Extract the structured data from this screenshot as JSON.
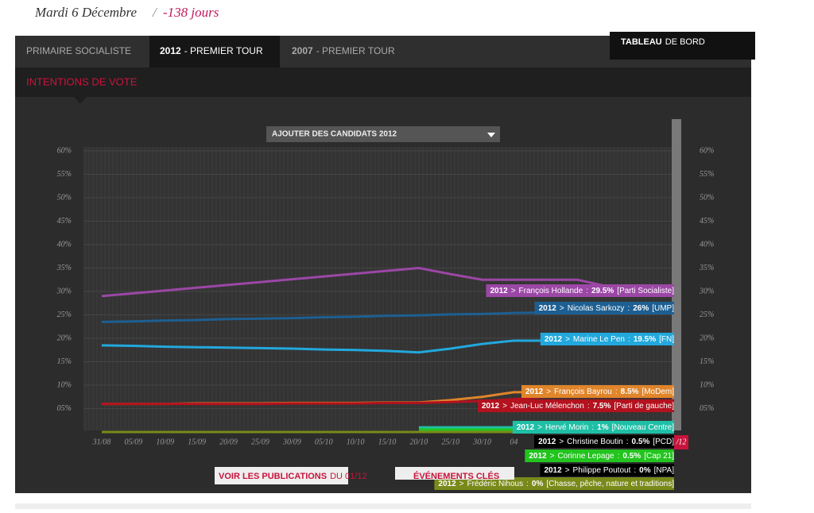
{
  "header": {
    "date": "Mardi 6 Décembre",
    "separator": "/",
    "countdown": "-138 jours"
  },
  "tabs": [
    {
      "bold": "",
      "text": "PRIMAIRE SOCIALISTE"
    },
    {
      "bold": "2012",
      "text": "- PREMIER TOUR"
    },
    {
      "bold": "2007",
      "text": "- PREMIER TOUR"
    }
  ],
  "dashboard": {
    "bold": "TABLEAU",
    "text": "DE BORD"
  },
  "subtab": "INTENTIONS DE VOTE",
  "dropdown": "AJOUTER DES CANDIDATS 2012",
  "publications": {
    "bold": "VOIR LES PUBLICATIONS",
    "text": "DU 01/12"
  },
  "events": "ÉVÉNEMENTS CLÉS",
  "chart_data": {
    "type": "line",
    "label_prefix": "2012",
    "arrow": ">",
    "separator": ":",
    "categories": [
      "31/08",
      "05/09",
      "10/09",
      "15/09",
      "20/09",
      "25/09",
      "30/09",
      "05/10",
      "10/10",
      "15/10",
      "20/10",
      "25/10",
      "30/10",
      "04",
      null,
      null,
      null,
      null,
      "/12"
    ],
    "ylim": [
      0,
      60
    ],
    "yticks": [
      {
        "value": 5,
        "label": "05%"
      },
      {
        "value": 10,
        "label": "10%"
      },
      {
        "value": 15,
        "label": "15%"
      },
      {
        "value": 20,
        "label": "20%"
      },
      {
        "value": 25,
        "label": "25%"
      },
      {
        "value": 30,
        "label": "30%"
      },
      {
        "value": 35,
        "label": "35%"
      },
      {
        "value": 40,
        "label": "40%"
      },
      {
        "value": 45,
        "label": "45%"
      },
      {
        "value": 50,
        "label": "50%"
      },
      {
        "value": 55,
        "label": "55%"
      },
      {
        "value": 60,
        "label": "60%"
      }
    ],
    "series": [
      {
        "name": "François Hollande",
        "current": "29.5%",
        "party": "[Parti Socialiste]",
        "color": "#9b47a6",
        "values": [
          29,
          29.6,
          30.2,
          30.8,
          31.4,
          32,
          32.6,
          33.2,
          33.8,
          34.4,
          35,
          33.7,
          32.5,
          32.5,
          32.5,
          32.5,
          31,
          29.5,
          29.5
        ]
      },
      {
        "name": "Nicolas Sarkozy",
        "current": "26%",
        "party": "[UMP]",
        "color": "#1d5f92",
        "values": [
          23.5,
          23.6,
          23.8,
          23.9,
          24.1,
          24.2,
          24.3,
          24.5,
          24.6,
          24.8,
          24.9,
          25.1,
          25.2,
          25.4,
          25.5,
          25.6,
          25.8,
          26,
          26
        ]
      },
      {
        "name": "Marine Le Pen",
        "current": "19.5%",
        "party": "[FN]",
        "color": "#22a8dc",
        "values": [
          18.5,
          18.4,
          18.2,
          18.1,
          18,
          17.9,
          17.8,
          17.6,
          17.5,
          17.3,
          17,
          17.8,
          18.8,
          19.5,
          19.5,
          19.5,
          19.5,
          19.5,
          19.5
        ]
      },
      {
        "name": "François Bayrou",
        "current": "8.5%",
        "party": "[MoDem]",
        "color": "#e0852a",
        "values": [
          6,
          6,
          6,
          6.1,
          6.1,
          6.1,
          6.2,
          6.2,
          6.2,
          6.3,
          6.3,
          6.8,
          7.5,
          8.5,
          8.5,
          8.5,
          8.5,
          8.5,
          8.5
        ]
      },
      {
        "name": "Jean-Luc Mélenchon",
        "current": "7.5%",
        "party": "[Parti de gauche]",
        "color": "#b3121e",
        "values": [
          6,
          6,
          6,
          6,
          6,
          6,
          6.1,
          6.1,
          6.1,
          6.2,
          6.2,
          6.4,
          6.6,
          7,
          7.5,
          7.5,
          7.5,
          7.5,
          7.5
        ]
      },
      {
        "name": "Hervé Morin",
        "current": "1%",
        "party": "[Nouveau Centre]",
        "color": "#1fbfa6",
        "values": [
          null,
          null,
          null,
          null,
          null,
          null,
          null,
          null,
          null,
          null,
          1,
          1,
          1,
          1,
          1,
          1,
          1,
          1,
          1
        ]
      },
      {
        "name": "Christine Boutin",
        "current": "0.5%",
        "party": "[PCD]",
        "color": "#000000",
        "values": [
          null,
          null,
          null,
          null,
          null,
          null,
          null,
          null,
          null,
          null,
          0.5,
          0.5,
          0.5,
          0.5,
          0.5,
          0.5,
          0.5,
          0.5,
          0.5
        ]
      },
      {
        "name": "Corinne Lepage",
        "current": "0.5%",
        "party": "[Cap 21]",
        "color": "#22c41e",
        "values": [
          null,
          null,
          null,
          null,
          null,
          null,
          null,
          null,
          null,
          null,
          0.5,
          0.5,
          0.5,
          0.5,
          0.5,
          0.5,
          0.5,
          0.5,
          0.5
        ]
      },
      {
        "name": "Philippe Poutout",
        "current": "0%",
        "party": "[NPA]",
        "color": "#000000",
        "values": [
          0,
          0,
          0,
          0,
          0,
          0,
          0,
          0,
          0,
          0,
          0,
          0,
          0,
          0,
          0,
          0,
          0,
          0,
          0
        ]
      },
      {
        "name": "Frédéric Nihous",
        "current": "0%",
        "party": "[Chasse, pêche, nature et traditions]",
        "color": "#7a8a1a",
        "values": [
          0,
          0,
          0,
          0,
          0,
          0,
          0,
          0,
          0,
          0,
          0,
          0,
          0,
          0,
          0,
          0,
          0,
          0,
          0
        ]
      }
    ]
  }
}
